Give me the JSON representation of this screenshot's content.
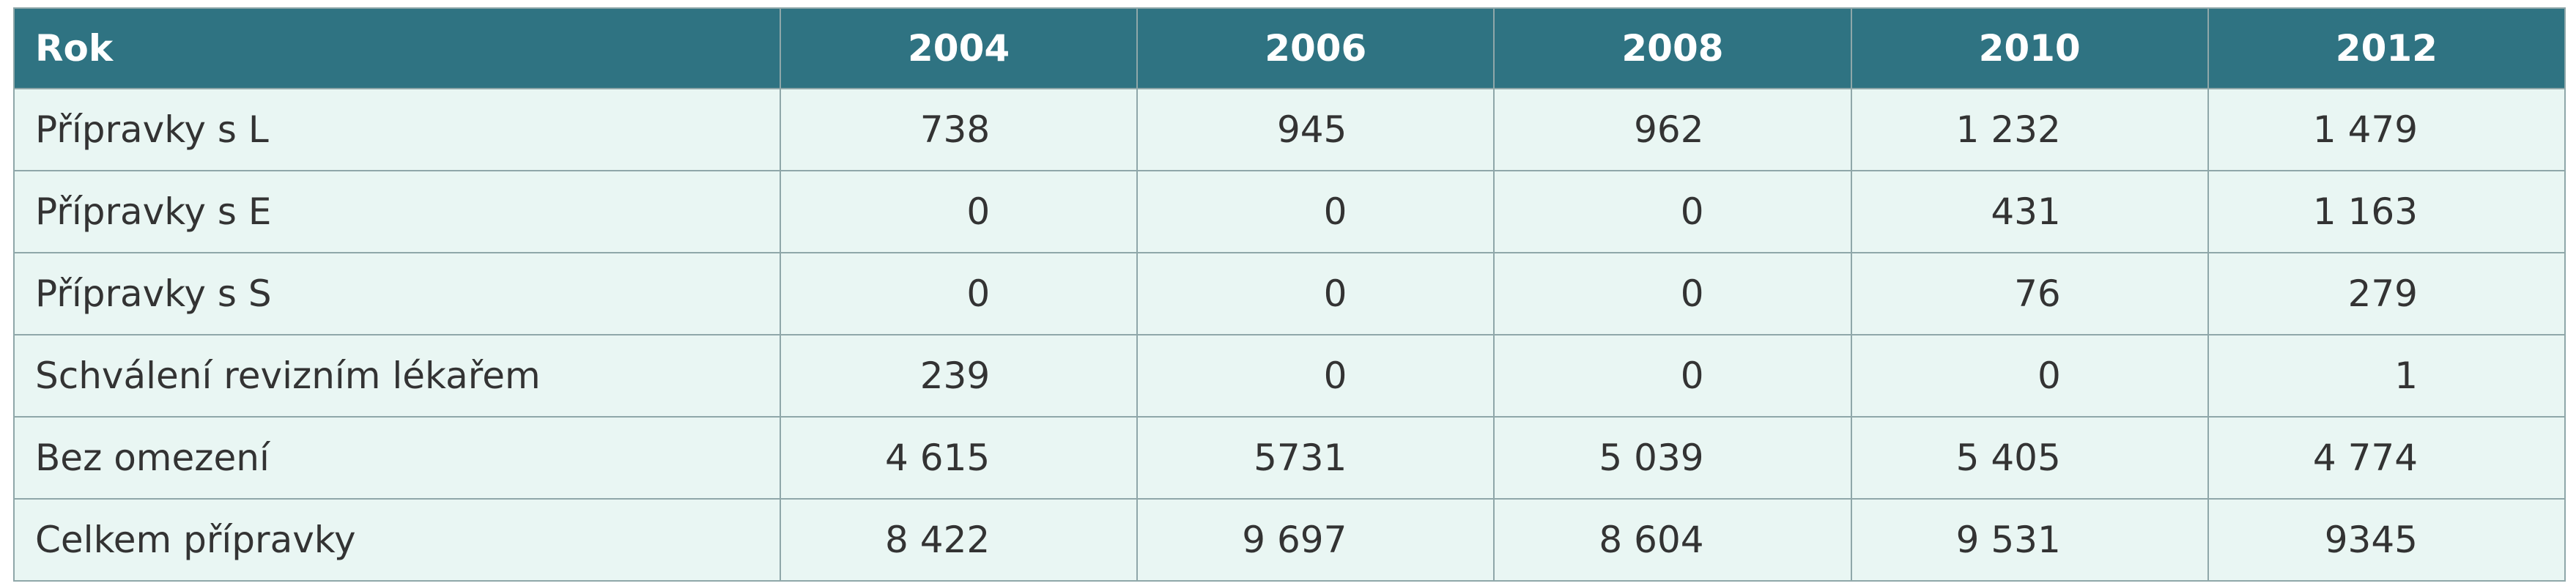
{
  "table": {
    "header": [
      "Rok",
      "2004",
      "2006",
      "2008",
      "2010",
      "2012"
    ],
    "rows": [
      [
        "Přípravky s L",
        "738",
        "945",
        "962",
        "1 232",
        "1 479"
      ],
      [
        "Přípravky s E",
        "0",
        "0",
        "0",
        "431",
        "1 163"
      ],
      [
        "Přípravky s S",
        "0",
        "0",
        "0",
        "76",
        "279"
      ],
      [
        "Schválení revizním lékařem",
        "239",
        "0",
        "0",
        "0",
        "1"
      ],
      [
        "Bez omezení",
        "4 615",
        "5731",
        "5 039",
        "5 405",
        "4 774"
      ],
      [
        "Celkem přípravky",
        "8 422",
        "9 697",
        "8 604",
        "9 531",
        "9345"
      ]
    ]
  }
}
